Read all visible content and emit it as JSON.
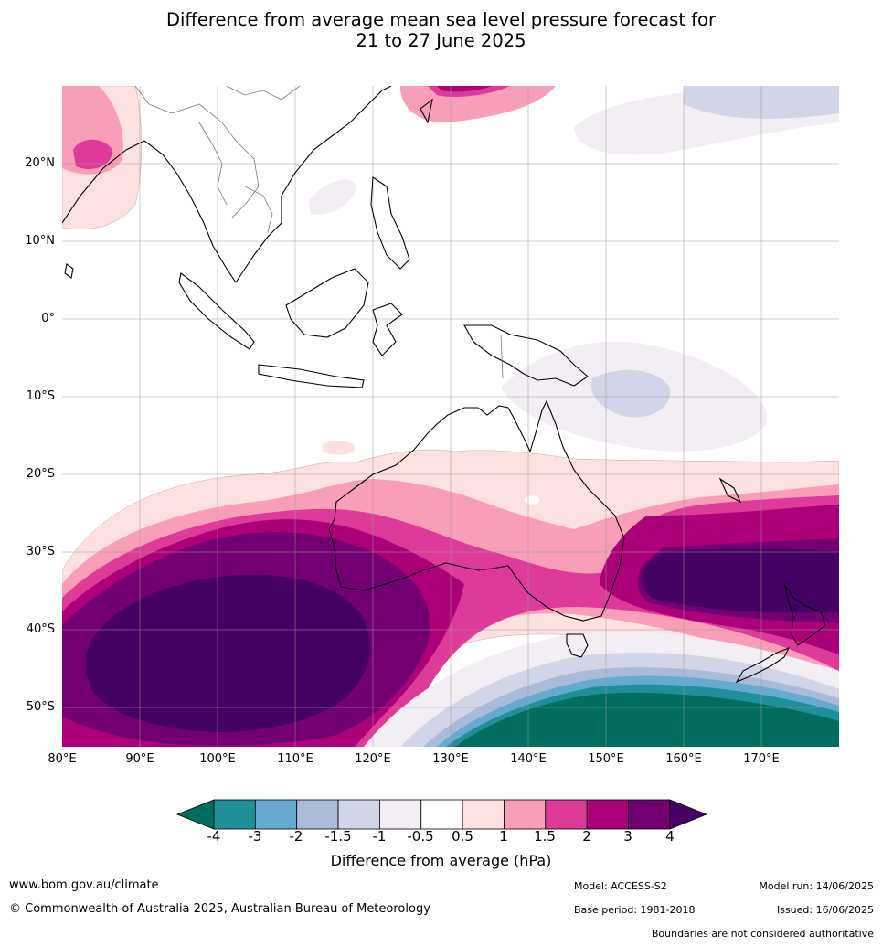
{
  "title_line1": "Difference from average mean sea level pressure forecast for",
  "title_line2": "21 to 27 June 2025",
  "lat_labels": [
    "20°N",
    "10°N",
    "0°",
    "10°S",
    "20°S",
    "30°S",
    "40°S",
    "50°S"
  ],
  "lon_labels": [
    "80°E",
    "90°E",
    "100°E",
    "110°E",
    "120°E",
    "130°E",
    "140°E",
    "150°E",
    "160°E",
    "170°E"
  ],
  "colorbar": {
    "title": "Difference from average (hPa)",
    "ticks": [
      "-4",
      "-3",
      "-2",
      "-1.5",
      "-1",
      "-0.5",
      "0.5",
      "1",
      "1.5",
      "2",
      "3",
      "4"
    ],
    "colors": [
      "#006e5e",
      "#1f9099",
      "#66aad0",
      "#a9bbd9",
      "#d2d4e8",
      "#f2eef4",
      "#ffffff",
      "#fde0e0",
      "#f89eb8",
      "#dd3a9a",
      "#ab0078",
      "#730073",
      "#450063"
    ]
  },
  "footer": {
    "website": "www.bom.gov.au/climate",
    "copyright": "© Commonwealth of Australia 2025, Australian Bureau of Meteorology",
    "model": "Model: ACCESS-S2",
    "base_period": "Base period: 1981-2018",
    "model_run": "Model run: 14/06/2025",
    "issued": "Issued: 16/06/2025",
    "disclaimer": "Boundaries are not considered authoritative"
  }
}
